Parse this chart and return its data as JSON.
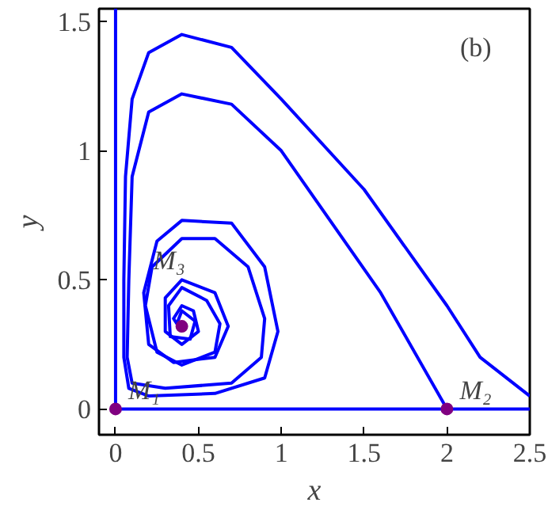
{
  "chart_data": {
    "type": "line",
    "xlabel": "x",
    "ylabel": "y",
    "xlim": [
      -0.1,
      2.5
    ],
    "ylim": [
      -0.1,
      1.55
    ],
    "xticks": [
      0,
      0.5,
      1,
      1.5,
      2,
      2.5
    ],
    "yticks": [
      0,
      0.5,
      1,
      1.5
    ],
    "grid": false,
    "series": [
      {
        "color": "#0000ff",
        "x": [
          0,
          0,
          2.5
        ],
        "values": [
          1.55,
          0,
          0
        ]
      },
      {
        "color": "#0000ff",
        "x": [
          2.5,
          2.2,
          2.0,
          1.5,
          1.0,
          0.7,
          0.4,
          0.2,
          0.1,
          0.06,
          0.05,
          0.05,
          0.08,
          0.2,
          0.6,
          0.9,
          0.98,
          0.9,
          0.7,
          0.4,
          0.25,
          0.17,
          0.2,
          0.35,
          0.6,
          0.68,
          0.6,
          0.4,
          0.3,
          0.3,
          0.4,
          0.5,
          0.47,
          0.4,
          0.35,
          0.4
        ],
        "values": [
          0.05,
          0.2,
          0.4,
          0.85,
          1.2,
          1.4,
          1.45,
          1.38,
          1.2,
          0.9,
          0.5,
          0.2,
          0.08,
          0.05,
          0.06,
          0.12,
          0.3,
          0.55,
          0.72,
          0.73,
          0.65,
          0.45,
          0.25,
          0.18,
          0.2,
          0.32,
          0.45,
          0.5,
          0.43,
          0.3,
          0.25,
          0.3,
          0.38,
          0.4,
          0.35,
          0.3
        ]
      },
      {
        "color": "#0000ff",
        "x": [
          2.0,
          1.6,
          1.0,
          0.7,
          0.4,
          0.2,
          0.1,
          0.08,
          0.07,
          0.1,
          0.3,
          0.7,
          0.88,
          0.9,
          0.8,
          0.6,
          0.4,
          0.22,
          0.18,
          0.25,
          0.4,
          0.6,
          0.63,
          0.55,
          0.4,
          0.32,
          0.33,
          0.45,
          0.48,
          0.4,
          0.37
        ],
        "values": [
          0,
          0.45,
          1.0,
          1.18,
          1.22,
          1.15,
          0.9,
          0.5,
          0.2,
          0.1,
          0.08,
          0.1,
          0.2,
          0.35,
          0.55,
          0.66,
          0.66,
          0.55,
          0.4,
          0.22,
          0.17,
          0.22,
          0.33,
          0.42,
          0.47,
          0.4,
          0.28,
          0.27,
          0.34,
          0.38,
          0.33
        ]
      },
      {
        "type": "scatter",
        "color": "#800080",
        "marker": "circle",
        "x": [
          0,
          2,
          0.4
        ],
        "values": [
          0,
          0,
          0.32
        ]
      }
    ],
    "annotations": [
      "(b)",
      {
        "text": "M₁",
        "x": 0,
        "y": 0
      },
      {
        "text": "M₂",
        "x": 2,
        "y": 0
      },
      {
        "text": "M₃",
        "x": 0.4,
        "y": 0.32
      }
    ]
  }
}
